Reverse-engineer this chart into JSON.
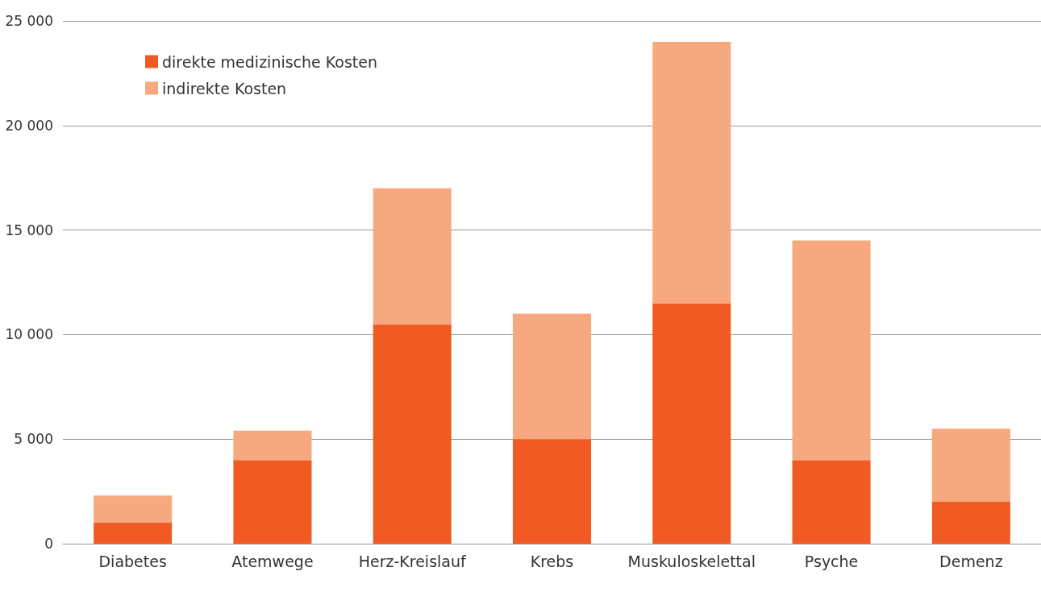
{
  "chart_data": {
    "type": "bar",
    "stacked": true,
    "categories": [
      "Diabetes",
      "Atemwege",
      "Herz-Kreislauf",
      "Krebs",
      "Muskuloskelettal",
      "Psyche",
      "Demenz"
    ],
    "series": [
      {
        "name": "direkte medizinische Kosten",
        "color": "#f15a22",
        "values": [
          1000,
          4000,
          10500,
          5000,
          11500,
          4000,
          2000
        ]
      },
      {
        "name": "indirekte Kosten",
        "color": "#f6a97f",
        "values": [
          1300,
          1400,
          6500,
          6000,
          12500,
          10500,
          3500
        ]
      }
    ],
    "ylim": [
      0,
      25000
    ],
    "yticks": [
      0,
      {
        "value": 5000,
        "label": "5 000"
      },
      {
        "value": 10000,
        "label": "10 000"
      },
      {
        "value": 15000,
        "label": "15 000"
      },
      {
        "value": 20000,
        "label": "20 000"
      },
      {
        "value": 25000,
        "label": "25 000"
      }
    ],
    "grid": "y",
    "legend": "top left"
  }
}
